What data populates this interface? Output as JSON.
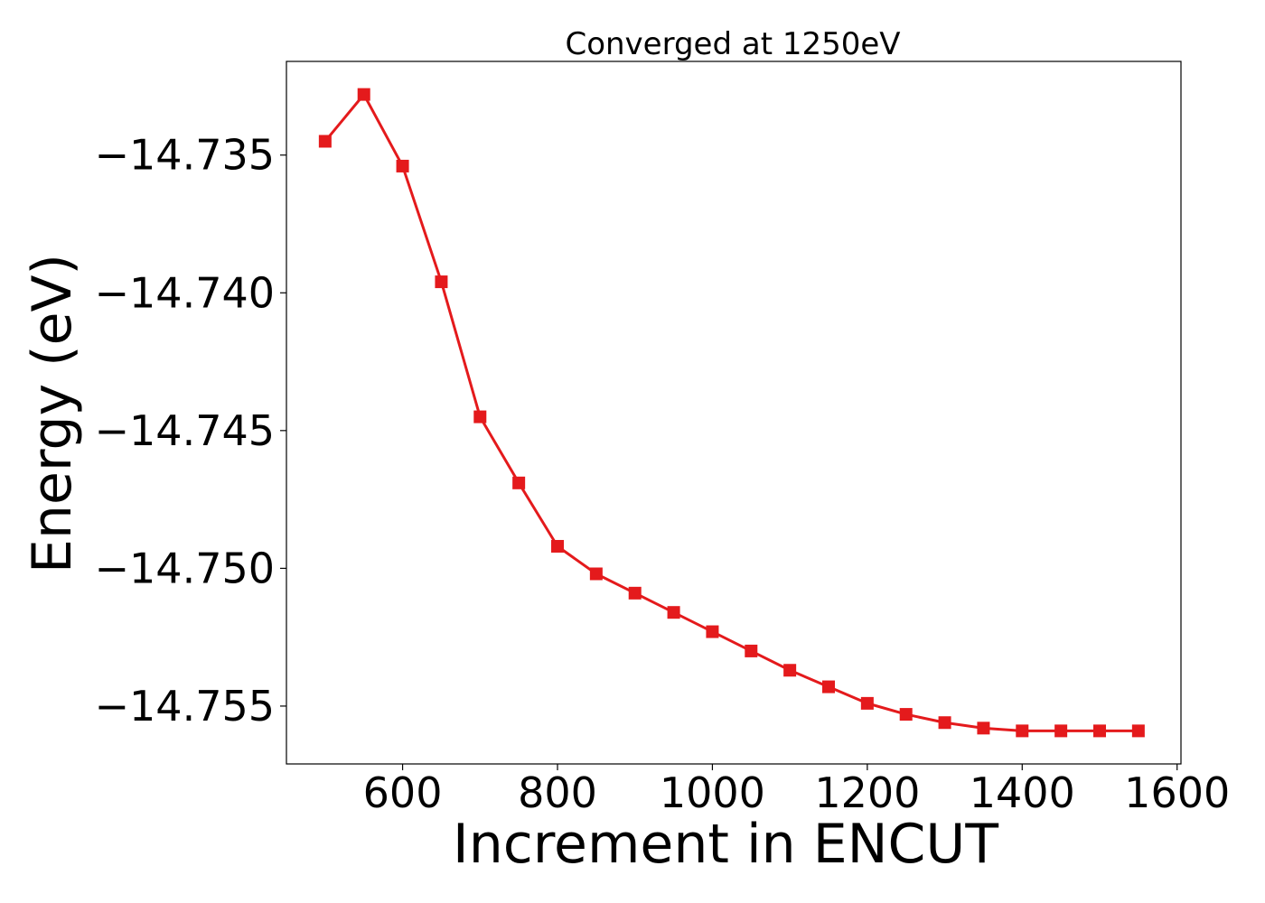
{
  "chart_data": {
    "type": "line",
    "title": "Converged at 1250eV",
    "xlabel": "Increment in ENCUT",
    "ylabel": "Energy (eV)",
    "xlim": [
      450,
      1605
    ],
    "ylim": [
      -14.7571,
      -14.7316
    ],
    "x_ticks": [
      600,
      800,
      1000,
      1200,
      1400,
      1600
    ],
    "y_ticks": [
      -14.735,
      -14.74,
      -14.745,
      -14.75,
      -14.755
    ],
    "x_tick_labels": [
      "600",
      "800",
      "1000",
      "1200",
      "1400",
      "1600"
    ],
    "y_tick_labels": [
      "−14.735",
      "−14.740",
      "−14.745",
      "−14.750",
      "−14.755"
    ],
    "grid": false,
    "series": [
      {
        "color": "#e41a1c",
        "marker": "square",
        "x": [
          500,
          550,
          600,
          650,
          700,
          750,
          800,
          850,
          900,
          950,
          1000,
          1050,
          1100,
          1150,
          1200,
          1250,
          1300,
          1350,
          1400,
          1450,
          1500,
          1550
        ],
        "y": [
          -14.7345,
          -14.7328,
          -14.7354,
          -14.7396,
          -14.7445,
          -14.7469,
          -14.7492,
          -14.7502,
          -14.7509,
          -14.7516,
          -14.7523,
          -14.753,
          -14.7537,
          -14.7543,
          -14.7549,
          -14.7553,
          -14.7556,
          -14.7558,
          -14.7559,
          -14.7559,
          -14.7559,
          -14.7559
        ]
      }
    ]
  }
}
